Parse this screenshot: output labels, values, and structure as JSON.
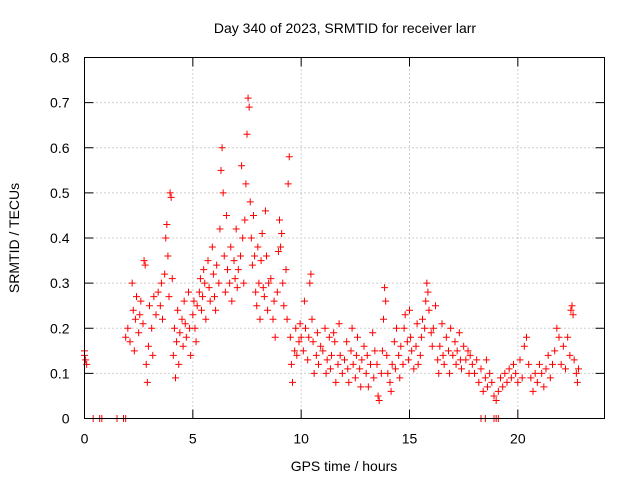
{
  "chart_data": {
    "type": "scatter",
    "title": "Day 340 of 2023, SRMTID for receiver larr",
    "xlabel": "GPS time / hours",
    "ylabel": "SRMTID / TECUs",
    "xlim": [
      0,
      24
    ],
    "ylim": [
      0,
      0.8
    ],
    "x_ticks": [
      "0",
      "5",
      "10",
      "15",
      "20"
    ],
    "y_ticks": [
      "0",
      "0.1",
      "0.2",
      "0.3",
      "0.4",
      "0.5",
      "0.6",
      "0.7",
      "0.8"
    ],
    "grid": true,
    "marker": "plus",
    "marker_color": "#ff0000",
    "series": [
      {
        "name": "SRMTID",
        "points": [
          [
            0.0,
            0.15
          ],
          [
            0.0,
            0.14
          ],
          [
            0.05,
            0.13
          ],
          [
            0.1,
            0.12
          ],
          [
            0.4,
            0.0
          ],
          [
            0.7,
            0.0
          ],
          [
            0.8,
            0.0
          ],
          [
            1.5,
            0.0
          ],
          [
            1.8,
            0.0
          ],
          [
            1.9,
            0.0
          ],
          [
            1.9,
            0.18
          ],
          [
            2.0,
            0.2
          ],
          [
            2.1,
            0.17
          ],
          [
            2.2,
            0.3
          ],
          [
            2.25,
            0.24
          ],
          [
            2.3,
            0.15
          ],
          [
            2.35,
            0.22
          ],
          [
            2.4,
            0.27
          ],
          [
            2.5,
            0.19
          ],
          [
            2.55,
            0.23
          ],
          [
            2.6,
            0.26
          ],
          [
            2.7,
            0.21
          ],
          [
            2.75,
            0.35
          ],
          [
            2.8,
            0.34
          ],
          [
            2.85,
            0.12
          ],
          [
            2.9,
            0.08
          ],
          [
            2.95,
            0.16
          ],
          [
            3.0,
            0.25
          ],
          [
            3.1,
            0.2
          ],
          [
            3.15,
            0.14
          ],
          [
            3.2,
            0.27
          ],
          [
            3.3,
            0.23
          ],
          [
            3.4,
            0.28
          ],
          [
            3.5,
            0.25
          ],
          [
            3.55,
            0.3
          ],
          [
            3.6,
            0.22
          ],
          [
            3.7,
            0.32
          ],
          [
            3.75,
            0.4
          ],
          [
            3.8,
            0.43
          ],
          [
            3.85,
            0.36
          ],
          [
            3.9,
            0.27
          ],
          [
            3.95,
            0.5
          ],
          [
            4.0,
            0.49
          ],
          [
            4.05,
            0.31
          ],
          [
            4.1,
            0.14
          ],
          [
            4.15,
            0.2
          ],
          [
            4.2,
            0.09
          ],
          [
            4.25,
            0.17
          ],
          [
            4.3,
            0.24
          ],
          [
            4.35,
            0.12
          ],
          [
            4.4,
            0.19
          ],
          [
            4.5,
            0.22
          ],
          [
            4.55,
            0.16
          ],
          [
            4.6,
            0.26
          ],
          [
            4.65,
            0.21
          ],
          [
            4.7,
            0.18
          ],
          [
            4.8,
            0.28
          ],
          [
            4.85,
            0.2
          ],
          [
            4.9,
            0.14
          ],
          [
            5.0,
            0.23
          ],
          [
            5.05,
            0.26
          ],
          [
            5.1,
            0.2
          ],
          [
            5.15,
            0.17
          ],
          [
            5.2,
            0.25
          ],
          [
            5.3,
            0.28
          ],
          [
            5.35,
            0.31
          ],
          [
            5.4,
            0.24
          ],
          [
            5.45,
            0.27
          ],
          [
            5.5,
            0.33
          ],
          [
            5.55,
            0.3
          ],
          [
            5.6,
            0.22
          ],
          [
            5.7,
            0.35
          ],
          [
            5.75,
            0.29
          ],
          [
            5.8,
            0.26
          ],
          [
            5.9,
            0.38
          ],
          [
            5.95,
            0.32
          ],
          [
            6.0,
            0.27
          ],
          [
            6.05,
            0.24
          ],
          [
            6.1,
            0.34
          ],
          [
            6.2,
            0.3
          ],
          [
            6.25,
            0.42
          ],
          [
            6.3,
            0.55
          ],
          [
            6.35,
            0.6
          ],
          [
            6.4,
            0.5
          ],
          [
            6.45,
            0.36
          ],
          [
            6.5,
            0.28
          ],
          [
            6.55,
            0.45
          ],
          [
            6.6,
            0.33
          ],
          [
            6.7,
            0.3
          ],
          [
            6.75,
            0.38
          ],
          [
            6.8,
            0.26
          ],
          [
            6.9,
            0.35
          ],
          [
            6.95,
            0.31
          ],
          [
            7.0,
            0.42
          ],
          [
            7.05,
            0.29
          ],
          [
            7.1,
            0.33
          ],
          [
            7.2,
            0.36
          ],
          [
            7.25,
            0.56
          ],
          [
            7.3,
            0.4
          ],
          [
            7.35,
            0.3
          ],
          [
            7.4,
            0.44
          ],
          [
            7.45,
            0.52
          ],
          [
            7.5,
            0.63
          ],
          [
            7.55,
            0.71
          ],
          [
            7.6,
            0.69
          ],
          [
            7.65,
            0.48
          ],
          [
            7.7,
            0.4
          ],
          [
            7.75,
            0.34
          ],
          [
            7.8,
            0.45
          ],
          [
            7.85,
            0.36
          ],
          [
            7.9,
            0.28
          ],
          [
            7.95,
            0.25
          ],
          [
            8.0,
            0.38
          ],
          [
            8.05,
            0.3
          ],
          [
            8.1,
            0.22
          ],
          [
            8.15,
            0.35
          ],
          [
            8.2,
            0.41
          ],
          [
            8.25,
            0.29
          ],
          [
            8.3,
            0.27
          ],
          [
            8.35,
            0.46
          ],
          [
            8.4,
            0.36
          ],
          [
            8.45,
            0.24
          ],
          [
            8.5,
            0.3
          ],
          [
            8.6,
            0.31
          ],
          [
            8.7,
            0.22
          ],
          [
            8.75,
            0.26
          ],
          [
            8.8,
            0.18
          ],
          [
            8.9,
            0.28
          ],
          [
            8.95,
            0.37
          ],
          [
            9.0,
            0.44
          ],
          [
            9.05,
            0.38
          ],
          [
            9.1,
            0.41
          ],
          [
            9.15,
            0.3
          ],
          [
            9.2,
            0.25
          ],
          [
            9.3,
            0.33
          ],
          [
            9.35,
            0.22
          ],
          [
            9.4,
            0.52
          ],
          [
            9.45,
            0.58
          ],
          [
            9.5,
            0.18
          ],
          [
            9.55,
            0.12
          ],
          [
            9.6,
            0.08
          ],
          [
            9.7,
            0.15
          ],
          [
            9.75,
            0.2
          ],
          [
            9.8,
            0.14
          ],
          [
            9.9,
            0.17
          ],
          [
            9.95,
            0.21
          ],
          [
            10.0,
            0.18
          ],
          [
            10.1,
            0.15
          ],
          [
            10.15,
            0.26
          ],
          [
            10.2,
            0.2
          ],
          [
            10.3,
            0.13
          ],
          [
            10.35,
            0.18
          ],
          [
            10.4,
            0.3
          ],
          [
            10.45,
            0.32
          ],
          [
            10.5,
            0.22
          ],
          [
            10.55,
            0.17
          ],
          [
            10.6,
            0.1
          ],
          [
            10.7,
            0.14
          ],
          [
            10.75,
            0.19
          ],
          [
            10.8,
            0.12
          ],
          [
            10.9,
            0.16
          ],
          [
            11.0,
            0.15
          ],
          [
            11.1,
            0.2
          ],
          [
            11.15,
            0.1
          ],
          [
            11.2,
            0.13
          ],
          [
            11.3,
            0.18
          ],
          [
            11.35,
            0.11
          ],
          [
            11.4,
            0.14
          ],
          [
            11.5,
            0.19
          ],
          [
            11.55,
            0.17
          ],
          [
            11.6,
            0.08
          ],
          [
            11.7,
            0.12
          ],
          [
            11.75,
            0.21
          ],
          [
            11.8,
            0.14
          ],
          [
            11.9,
            0.1
          ],
          [
            12.0,
            0.13
          ],
          [
            12.1,
            0.17
          ],
          [
            12.15,
            0.11
          ],
          [
            12.2,
            0.08
          ],
          [
            12.3,
            0.15
          ],
          [
            12.35,
            0.2
          ],
          [
            12.4,
            0.12
          ],
          [
            12.5,
            0.09
          ],
          [
            12.55,
            0.14
          ],
          [
            12.6,
            0.18
          ],
          [
            12.7,
            0.11
          ],
          [
            12.75,
            0.07
          ],
          [
            12.8,
            0.13
          ],
          [
            12.9,
            0.16
          ],
          [
            13.0,
            0.1
          ],
          [
            13.05,
            0.14
          ],
          [
            13.1,
            0.07
          ],
          [
            13.2,
            0.12
          ],
          [
            13.3,
            0.19
          ],
          [
            13.35,
            0.09
          ],
          [
            13.4,
            0.15
          ],
          [
            13.5,
            0.12
          ],
          [
            13.55,
            0.05
          ],
          [
            13.6,
            0.04
          ],
          [
            13.7,
            0.1
          ],
          [
            13.75,
            0.15
          ],
          [
            13.8,
            0.22
          ],
          [
            13.85,
            0.29
          ],
          [
            13.9,
            0.26
          ],
          [
            13.95,
            0.14
          ],
          [
            14.0,
            0.1
          ],
          [
            14.1,
            0.08
          ],
          [
            14.15,
            0.06
          ],
          [
            14.2,
            0.12
          ],
          [
            14.3,
            0.17
          ],
          [
            14.35,
            0.11
          ],
          [
            14.4,
            0.2
          ],
          [
            14.5,
            0.14
          ],
          [
            14.55,
            0.09
          ],
          [
            14.6,
            0.16
          ],
          [
            14.7,
            0.12
          ],
          [
            14.75,
            0.2
          ],
          [
            14.8,
            0.23
          ],
          [
            14.9,
            0.17
          ],
          [
            14.95,
            0.13
          ],
          [
            15.0,
            0.24
          ],
          [
            15.05,
            0.18
          ],
          [
            15.1,
            0.15
          ],
          [
            15.2,
            0.11
          ],
          [
            15.3,
            0.16
          ],
          [
            15.35,
            0.21
          ],
          [
            15.4,
            0.12
          ],
          [
            15.5,
            0.14
          ],
          [
            15.55,
            0.18
          ],
          [
            15.6,
            0.22
          ],
          [
            15.7,
            0.2
          ],
          [
            15.75,
            0.26
          ],
          [
            15.8,
            0.3
          ],
          [
            15.85,
            0.28
          ],
          [
            15.9,
            0.24
          ],
          [
            16.0,
            0.19
          ],
          [
            16.05,
            0.16
          ],
          [
            16.1,
            0.2
          ],
          [
            16.2,
            0.25
          ],
          [
            16.3,
            0.13
          ],
          [
            16.35,
            0.1
          ],
          [
            16.4,
            0.16
          ],
          [
            16.5,
            0.21
          ],
          [
            16.55,
            0.14
          ],
          [
            16.6,
            0.12
          ],
          [
            16.7,
            0.18
          ],
          [
            16.8,
            0.15
          ],
          [
            16.85,
            0.1
          ],
          [
            16.9,
            0.2
          ],
          [
            17.0,
            0.14
          ],
          [
            17.1,
            0.17
          ],
          [
            17.15,
            0.12
          ],
          [
            17.2,
            0.15
          ],
          [
            17.3,
            0.19
          ],
          [
            17.35,
            0.13
          ],
          [
            17.4,
            0.11
          ],
          [
            17.5,
            0.16
          ],
          [
            17.6,
            0.13
          ],
          [
            17.7,
            0.15
          ],
          [
            17.75,
            0.1
          ],
          [
            17.8,
            0.14
          ],
          [
            17.9,
            0.12
          ],
          [
            18.0,
            0.1
          ],
          [
            18.1,
            0.13
          ],
          [
            18.2,
            0.08
          ],
          [
            18.3,
            0.11
          ],
          [
            18.4,
            0.06
          ],
          [
            18.5,
            0.09
          ],
          [
            18.55,
            0.13
          ],
          [
            18.6,
            0.07
          ],
          [
            18.7,
            0.1
          ],
          [
            18.8,
            0.08
          ],
          [
            18.9,
            0.05
          ],
          [
            19.0,
            0.04
          ],
          [
            19.1,
            0.06
          ],
          [
            19.2,
            0.09
          ],
          [
            19.3,
            0.07
          ],
          [
            19.4,
            0.1
          ],
          [
            19.5,
            0.08
          ],
          [
            19.6,
            0.11
          ],
          [
            19.7,
            0.09
          ],
          [
            19.8,
            0.12
          ],
          [
            19.9,
            0.1
          ],
          [
            20.0,
            0.08
          ],
          [
            20.1,
            0.13
          ],
          [
            20.2,
            0.09
          ],
          [
            20.3,
            0.16
          ],
          [
            20.4,
            0.18
          ],
          [
            20.5,
            0.12
          ],
          [
            20.6,
            0.09
          ],
          [
            20.7,
            0.06
          ],
          [
            20.8,
            0.1
          ],
          [
            20.9,
            0.08
          ],
          [
            21.0,
            0.12
          ],
          [
            21.1,
            0.1
          ],
          [
            21.2,
            0.07
          ],
          [
            21.3,
            0.11
          ],
          [
            21.4,
            0.14
          ],
          [
            21.5,
            0.09
          ],
          [
            21.6,
            0.12
          ],
          [
            21.7,
            0.15
          ],
          [
            21.8,
            0.2
          ],
          [
            21.9,
            0.18
          ],
          [
            22.0,
            0.12
          ],
          [
            22.1,
            0.16
          ],
          [
            22.2,
            0.11
          ],
          [
            22.3,
            0.18
          ],
          [
            22.4,
            0.14
          ],
          [
            22.45,
            0.24
          ],
          [
            22.5,
            0.25
          ],
          [
            22.55,
            0.23
          ],
          [
            22.6,
            0.13
          ],
          [
            22.7,
            0.1
          ],
          [
            22.75,
            0.08
          ],
          [
            22.8,
            0.11
          ],
          [
            18.3,
            0.0
          ],
          [
            18.5,
            0.0
          ],
          [
            18.9,
            0.0
          ],
          [
            19.0,
            0.0
          ],
          [
            19.1,
            0.0
          ]
        ]
      }
    ]
  }
}
